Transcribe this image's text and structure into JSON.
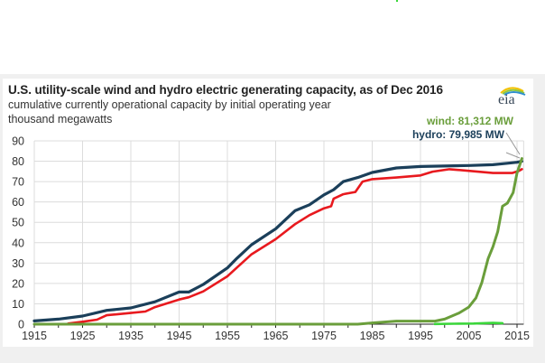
{
  "header": {
    "title": "U.S. utility-scale wind and hydro electric generating capacity, as of Dec 2016",
    "subtitle": "cumulative currently operational capacity by initial operating year",
    "units": "thousand megawatts",
    "logo_text": "eia"
  },
  "annotations": {
    "wind": "wind: 81,312 MW",
    "hydro": "hydro: 79,985 MW"
  },
  "colors": {
    "hydro": "#1b3f5a",
    "other_red": "#e8191e",
    "wind": "#6a9e3b",
    "other_green": "#3ad63a",
    "grid": "#dcdcdc",
    "band": "#f0f0f0"
  },
  "chart_data": {
    "type": "line",
    "title": "U.S. utility-scale wind and hydro electric generating capacity, as of Dec 2016",
    "subtitle": "cumulative currently operational capacity by initial operating year",
    "ylabel": "thousand megawatts",
    "xlabel": "",
    "xlim": [
      1915,
      2016
    ],
    "ylim": [
      0,
      90
    ],
    "xticks": [
      1915,
      1925,
      1935,
      1945,
      1955,
      1965,
      1975,
      1985,
      1995,
      2005,
      2015
    ],
    "yticks": [
      0,
      10,
      20,
      30,
      40,
      50,
      60,
      70,
      80,
      90
    ],
    "grid": true,
    "legend": "annotations at top-right",
    "series": [
      {
        "name": "hydro",
        "label": "hydro: 79,985 MW",
        "color": "#1b3f5a",
        "points": [
          [
            1915,
            1.6
          ],
          [
            1920,
            2.5
          ],
          [
            1925,
            4.0
          ],
          [
            1930,
            6.8
          ],
          [
            1935,
            8.0
          ],
          [
            1940,
            11.0
          ],
          [
            1945,
            15.8
          ],
          [
            1947,
            15.8
          ],
          [
            1950,
            19.5
          ],
          [
            1955,
            27.6
          ],
          [
            1957,
            32.4
          ],
          [
            1960,
            39.0
          ],
          [
            1965,
            46.8
          ],
          [
            1969,
            55.7
          ],
          [
            1972,
            58.6
          ],
          [
            1975,
            63.5
          ],
          [
            1977,
            66.0
          ],
          [
            1979,
            70.0
          ],
          [
            1982,
            72.0
          ],
          [
            1985,
            74.5
          ],
          [
            1990,
            76.7
          ],
          [
            1995,
            77.4
          ],
          [
            2005,
            77.9
          ],
          [
            2010,
            78.3
          ],
          [
            2013,
            79.0
          ],
          [
            2015,
            79.5
          ],
          [
            2016,
            79.985
          ]
        ]
      },
      {
        "name": "unlabeled red series",
        "label": "",
        "color": "#e8191e",
        "points": [
          [
            1922,
            0.3
          ],
          [
            1925,
            1.2
          ],
          [
            1928,
            2.2
          ],
          [
            1930,
            4.4
          ],
          [
            1935,
            5.5
          ],
          [
            1938,
            6.2
          ],
          [
            1940,
            8.4
          ],
          [
            1945,
            12.1
          ],
          [
            1947,
            13.2
          ],
          [
            1950,
            16.1
          ],
          [
            1955,
            23.5
          ],
          [
            1960,
            34.3
          ],
          [
            1965,
            41.7
          ],
          [
            1969,
            49.1
          ],
          [
            1972,
            53.5
          ],
          [
            1975,
            56.9
          ],
          [
            1976.5,
            57.9
          ],
          [
            1977,
            61.6
          ],
          [
            1979,
            63.8
          ],
          [
            1981.5,
            64.9
          ],
          [
            1983,
            70.0
          ],
          [
            1985,
            71.2
          ],
          [
            1990,
            72.0
          ],
          [
            1995,
            73.0
          ],
          [
            1997.5,
            74.9
          ],
          [
            2001,
            76.1
          ],
          [
            2005,
            75.3
          ],
          [
            2010,
            74.2
          ],
          [
            2014,
            74.2
          ],
          [
            2015.4,
            75.3
          ],
          [
            2016,
            76.1
          ]
        ]
      },
      {
        "name": "wind",
        "label": "wind: 81,312 MW",
        "color": "#6a9e3b",
        "points": [
          [
            1915,
            0
          ],
          [
            1982,
            0
          ],
          [
            1985,
            0.6
          ],
          [
            1990,
            1.5
          ],
          [
            1998,
            1.5
          ],
          [
            2000,
            2.5
          ],
          [
            2003,
            5.5
          ],
          [
            2005,
            8.4
          ],
          [
            2006.5,
            12.9
          ],
          [
            2007.7,
            20.3
          ],
          [
            2009,
            32.1
          ],
          [
            2010,
            38.0
          ],
          [
            2011,
            45.4
          ],
          [
            2012,
            57.9
          ],
          [
            2013,
            59.4
          ],
          [
            2014.2,
            64.6
          ],
          [
            2015,
            74.2
          ],
          [
            2016,
            81.312
          ]
        ]
      },
      {
        "name": "unlabeled bright green series",
        "label": "",
        "color": "#3ad63a",
        "points": [
          [
            1998,
            0.1
          ],
          [
            2002,
            0.2
          ],
          [
            2006,
            0.3
          ],
          [
            2010,
            0.6
          ],
          [
            2012,
            0.5
          ]
        ]
      }
    ]
  }
}
